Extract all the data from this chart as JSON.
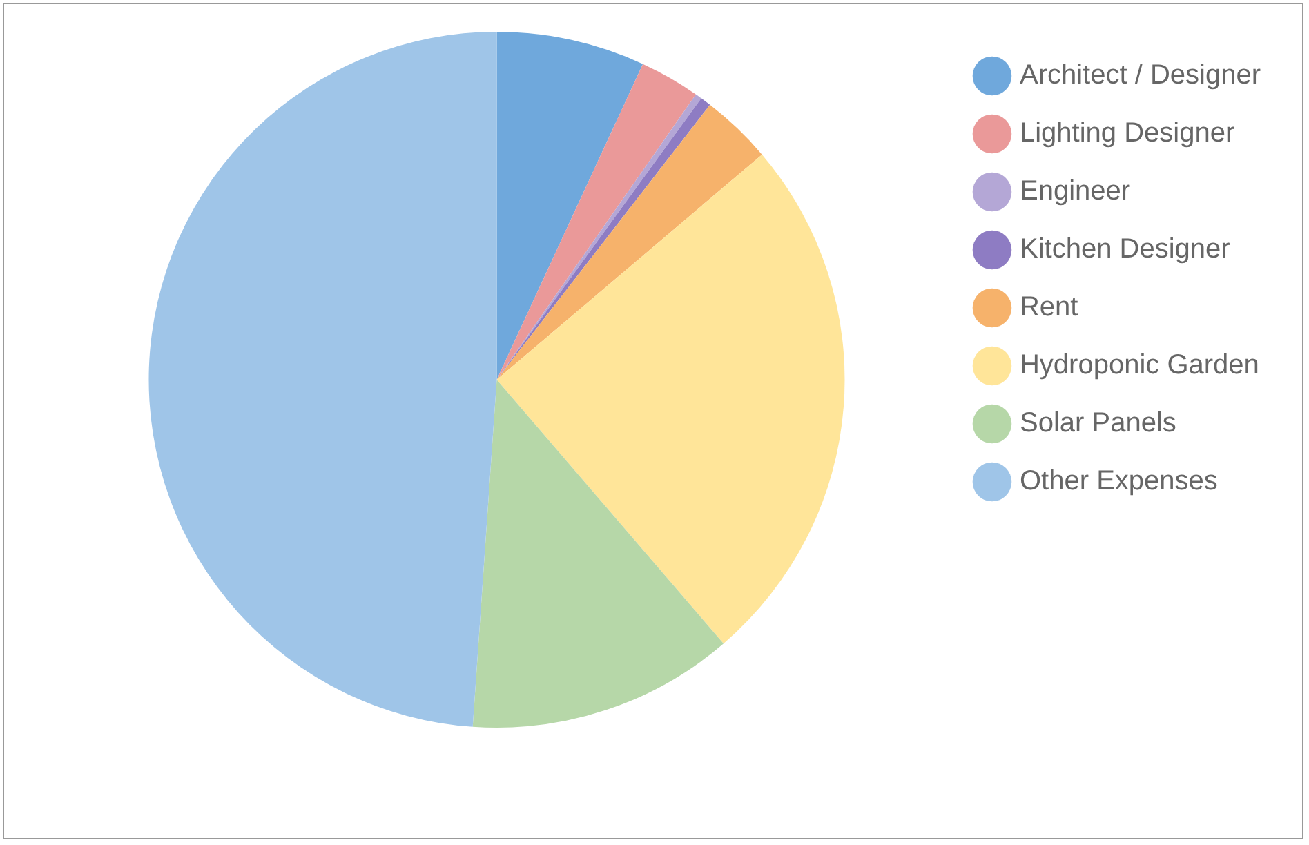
{
  "chart_data": {
    "type": "pie",
    "categories": [
      "Architect / Designer",
      "Lighting Designer",
      "Engineer",
      "Kitchen Designer",
      "Rent",
      "Hydroponic Garden",
      "Solar Panels",
      "Other Expenses"
    ],
    "values": [
      6.9,
      2.8,
      0.3,
      0.5,
      3.3,
      24.9,
      12.4,
      48.9
    ],
    "colors": [
      "#6fa8dc",
      "#ea9999",
      "#b4a7d6",
      "#8e7cc3",
      "#f6b26b",
      "#ffe599",
      "#b6d7a8",
      "#9fc5e8"
    ],
    "legend": "top right"
  }
}
